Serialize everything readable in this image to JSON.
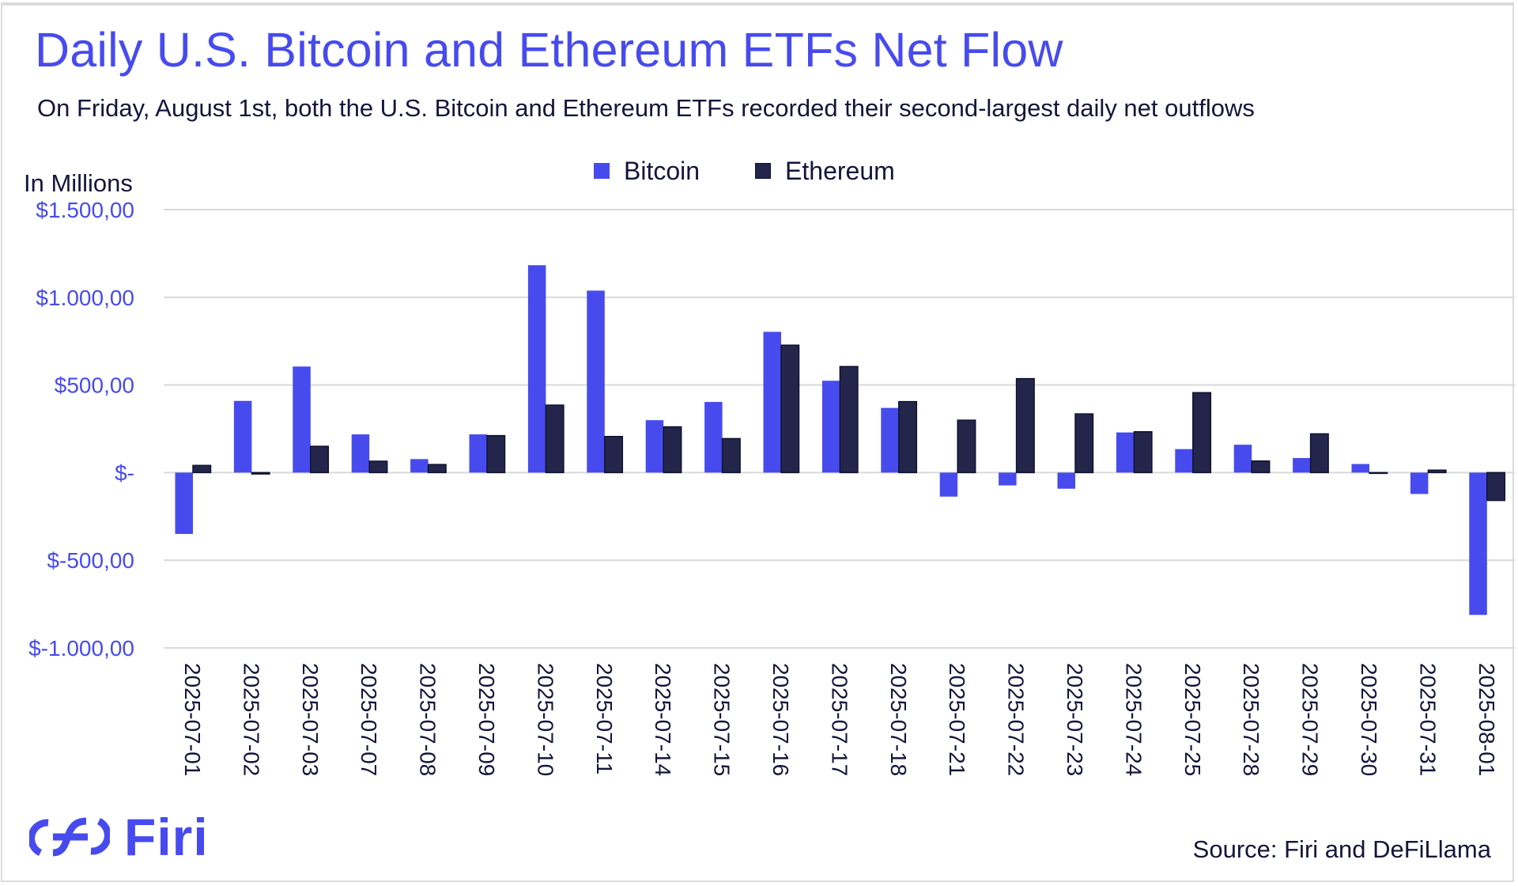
{
  "title": "Daily U.S. Bitcoin and Ethereum ETFs Net Flow",
  "subtitle": "On Friday, August 1st, both the U.S. Bitcoin and Ethereum ETFs recorded their second-largest daily net outflows",
  "unit_label": "In Millions",
  "source": "Source: Firi and DeFiLlama",
  "logo_text": "Firi",
  "colors": {
    "bitcoin": "#474BEE",
    "ethereum": "#23264A",
    "ethereum_outline": "#101230",
    "grid": "#d9d9d9",
    "axis_text": "#474BEE",
    "text": "#14163a"
  },
  "chart_data": {
    "type": "bar",
    "title": "Daily U.S. Bitcoin and Ethereum ETFs Net Flow",
    "subtitle": "On Friday, August 1st, both the U.S. Bitcoin and Ethereum ETFs recorded their second-largest daily net outflows",
    "xlabel": "",
    "ylabel": "In Millions",
    "ylim": [
      -1000,
      1500
    ],
    "yticks": [
      1500,
      1000,
      500,
      0,
      -500,
      -1000
    ],
    "ytick_labels": [
      "$1.500,00",
      "$1.000,00",
      "$500,00",
      "$-",
      "$-500,00",
      "$-1.000,00"
    ],
    "grid": true,
    "legend_position": "top-center",
    "categories": [
      "2025-07-01",
      "2025-07-02",
      "2025-07-03",
      "2025-07-07",
      "2025-07-08",
      "2025-07-09",
      "2025-07-10",
      "2025-07-11",
      "2025-07-14",
      "2025-07-15",
      "2025-07-16",
      "2025-07-17",
      "2025-07-18",
      "2025-07-21",
      "2025-07-22",
      "2025-07-23",
      "2025-07-24",
      "2025-07-25",
      "2025-07-28",
      "2025-07-29",
      "2025-07-30",
      "2025-07-31",
      "2025-08-01"
    ],
    "series": [
      {
        "name": "Bitcoin",
        "values": [
          -350,
          409,
          605,
          218,
          77,
          218,
          1183,
          1038,
          299,
          403,
          803,
          524,
          369,
          -137,
          -73,
          -92,
          229,
          134,
          159,
          83,
          49,
          -122,
          -812
        ]
      },
      {
        "name": "Ethereum",
        "values": [
          41,
          -8,
          150,
          65,
          46,
          211,
          385,
          206,
          261,
          194,
          727,
          605,
          405,
          299,
          536,
          335,
          233,
          456,
          66,
          221,
          -2,
          14,
          -159
        ]
      }
    ]
  }
}
